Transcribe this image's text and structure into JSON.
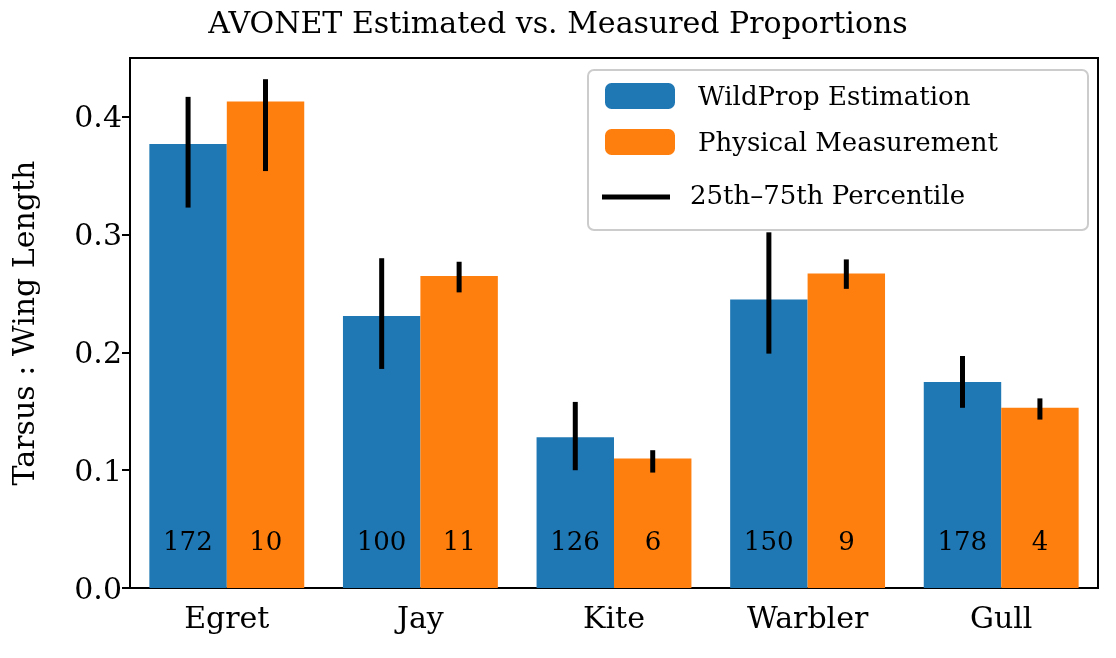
{
  "chart_data": {
    "type": "bar",
    "title": "AVONET Estimated vs. Measured Proportions",
    "ylabel": "Tarsus : Wing Length",
    "categories": [
      "Egret",
      "Jay",
      "Kite",
      "Warbler",
      "Gull"
    ],
    "series": [
      {
        "name": "WildProp Estimation",
        "color": "#1f77b4",
        "values": [
          0.377,
          0.231,
          0.128,
          0.245,
          0.175
        ],
        "errors": [
          [
            0.323,
            0.417
          ],
          [
            0.186,
            0.28
          ],
          [
            0.1,
            0.158
          ],
          [
            0.199,
            0.302
          ],
          [
            0.153,
            0.197
          ]
        ]
      },
      {
        "name": "Physical Measurement",
        "color": "#ff7f0e",
        "values": [
          0.413,
          0.265,
          0.11,
          0.267,
          0.153
        ],
        "errors": [
          [
            0.354,
            0.432
          ],
          [
            0.251,
            0.277
          ],
          [
            0.098,
            0.117
          ],
          [
            0.254,
            0.279
          ],
          [
            0.143,
            0.161
          ]
        ]
      }
    ],
    "annotations": [
      "25th–75th Percentile",
      {
        "text": "172",
        "x": "Egret",
        "y": 0.04
      },
      {
        "text": "10",
        "x": "Egret",
        "y": 0.04
      },
      {
        "text": "100",
        "x": "Jay",
        "y": 0.04
      },
      {
        "text": "11",
        "x": "Jay",
        "y": 0.04
      },
      {
        "text": "126",
        "x": "Kite",
        "y": 0.04
      },
      {
        "text": "6",
        "x": "Kite",
        "y": 0.04
      },
      {
        "text": "150",
        "x": "Warbler",
        "y": 0.04
      },
      {
        "text": "9",
        "x": "Warbler",
        "y": 0.04
      },
      {
        "text": "178",
        "x": "Gull",
        "y": 0.04
      },
      {
        "text": "4",
        "x": "Gull",
        "y": 0.04
      }
    ],
    "ylim": [
      0,
      0.45
    ],
    "yticks": [
      {
        "value": 0,
        "label": "0.0"
      },
      0.1,
      0.2,
      0.3,
      0.4
    ],
    "grid": false,
    "legend": "top right"
  }
}
